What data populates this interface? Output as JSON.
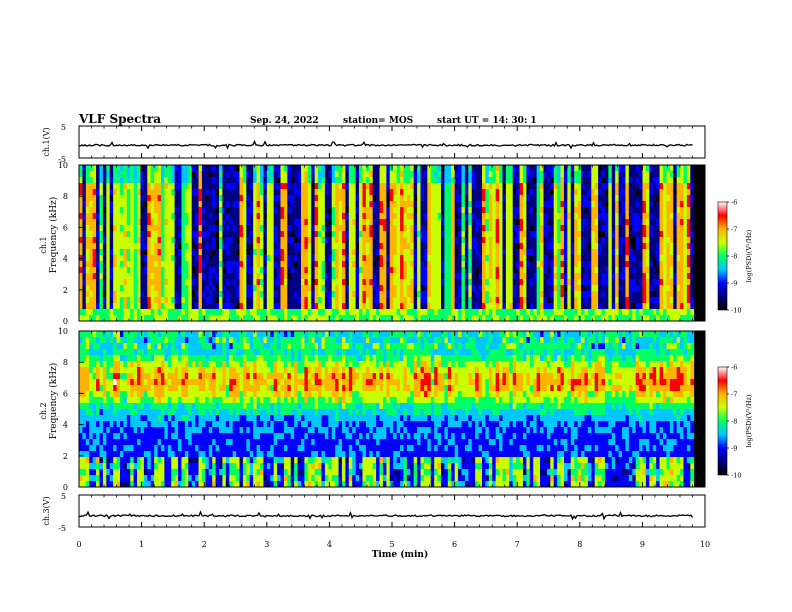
{
  "header": {
    "title": "VLF Spectra",
    "date": "Sep. 24, 2022",
    "station": "station= MOS",
    "start": "start  UT =   14: 30: 1"
  },
  "chart_data": [
    {
      "id": "ch1-waveform",
      "type": "line",
      "ylabel": "ch.1(V)",
      "ylim": [
        -5,
        5
      ],
      "yticks": [
        "5",
        "-5"
      ],
      "baseline": -1.0
    },
    {
      "id": "ch1-spectrogram",
      "type": "heatmap",
      "ylabel_top": "ch.1",
      "ylabel": "Frequency (kHz)",
      "ylim": [
        0,
        10
      ],
      "yticks": [
        "0",
        "2",
        "4",
        "6",
        "8",
        "10"
      ],
      "colorbar": {
        "label": "log(PSD)(V²/Hz)",
        "range": [
          -10,
          -6
        ],
        "ticks": [
          "-6",
          "-7",
          "-8",
          "-9",
          "-10"
        ]
      }
    },
    {
      "id": "ch2-spectrogram",
      "type": "heatmap",
      "ylabel_top": "ch.2",
      "ylabel": "Frequency (kHz)",
      "ylim": [
        0,
        10
      ],
      "yticks": [
        "0",
        "2",
        "4",
        "6",
        "8",
        "10"
      ],
      "colorbar": {
        "label": "log(PSD)(V²/Hz)",
        "range": [
          -10,
          -6
        ],
        "ticks": [
          "-6",
          "-7",
          "-8",
          "-9",
          "-10"
        ]
      }
    },
    {
      "id": "ch3-waveform",
      "type": "line",
      "ylabel": "ch.3(V)",
      "ylim": [
        -5,
        5
      ],
      "yticks": [
        "5",
        "-5"
      ],
      "baseline": -1.5
    }
  ],
  "xaxis": {
    "label": "Time  (min)",
    "xlim": [
      0,
      10
    ],
    "ticks": [
      "0",
      "1",
      "2",
      "3",
      "4",
      "5",
      "6",
      "7",
      "8",
      "9",
      "10"
    ],
    "data_end": 9.82
  },
  "colors": {
    "scale": [
      "#000000",
      "#000080",
      "#0000ff",
      "#00c8ff",
      "#00ff64",
      "#c8ff00",
      "#ffb400",
      "#ff0000",
      "#ffffff"
    ]
  }
}
